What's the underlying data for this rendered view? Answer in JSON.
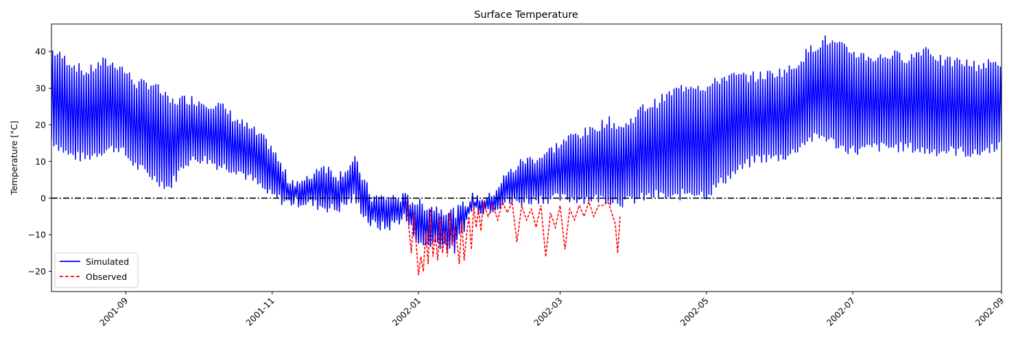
{
  "chart_data": {
    "type": "line",
    "title": "Surface Temperature",
    "ylabel": "Temperature [°C]",
    "xlabel": "",
    "x_axis_type": "date",
    "xlim": [
      "2001-08-01",
      "2002-09-01"
    ],
    "ylim": [
      -25.5,
      47.5
    ],
    "x_ticks": [
      "2001-09",
      "2001-11",
      "2002-01",
      "2002-03",
      "2002-05",
      "2002-07",
      "2002-09"
    ],
    "y_ticks": [
      -20,
      -10,
      0,
      10,
      20,
      30,
      40
    ],
    "grid": false,
    "legend_position": "lower-left",
    "reference_line": {
      "y": 0,
      "style": "dash-dot",
      "color": "#000000"
    },
    "series": [
      {
        "name": "Simulated",
        "color": "#0000ff",
        "style": "solid",
        "daily_max": [
          [
            "2001-08-01",
            40
          ],
          [
            "2001-08-08",
            37
          ],
          [
            "2001-08-15",
            34
          ],
          [
            "2001-08-22",
            37
          ],
          [
            "2001-08-29",
            36
          ],
          [
            "2001-09-05",
            31
          ],
          [
            "2001-09-12",
            31
          ],
          [
            "2001-09-19",
            26
          ],
          [
            "2001-09-26",
            27
          ],
          [
            "2001-10-03",
            26
          ],
          [
            "2001-10-10",
            25
          ],
          [
            "2001-10-17",
            21
          ],
          [
            "2001-10-24",
            18
          ],
          [
            "2001-10-31",
            14
          ],
          [
            "2001-11-07",
            5
          ],
          [
            "2001-11-14",
            4
          ],
          [
            "2001-11-21",
            9
          ],
          [
            "2001-11-28",
            6
          ],
          [
            "2001-12-05",
            10
          ],
          [
            "2001-12-12",
            0
          ],
          [
            "2001-12-19",
            0
          ],
          [
            "2001-12-26",
            0
          ],
          [
            "2002-01-02",
            -2
          ],
          [
            "2002-01-09",
            -3
          ],
          [
            "2002-01-16",
            -4
          ],
          [
            "2002-01-23",
            0
          ],
          [
            "2002-01-30",
            0
          ],
          [
            "2002-02-06",
            6
          ],
          [
            "2002-02-13",
            10
          ],
          [
            "2002-02-20",
            11
          ],
          [
            "2002-02-27",
            14
          ],
          [
            "2002-03-06",
            17
          ],
          [
            "2002-03-13",
            18
          ],
          [
            "2002-03-20",
            21
          ],
          [
            "2002-03-27",
            19
          ],
          [
            "2002-04-03",
            24
          ],
          [
            "2002-04-10",
            26
          ],
          [
            "2002-04-17",
            29
          ],
          [
            "2002-04-24",
            31
          ],
          [
            "2002-05-01",
            30
          ],
          [
            "2002-05-08",
            33
          ],
          [
            "2002-05-15",
            33
          ],
          [
            "2002-05-22",
            33
          ],
          [
            "2002-05-29",
            34
          ],
          [
            "2002-06-05",
            35
          ],
          [
            "2002-06-12",
            40
          ],
          [
            "2002-06-19",
            43
          ],
          [
            "2002-06-26",
            41
          ],
          [
            "2002-07-03",
            39
          ],
          [
            "2002-07-10",
            38
          ],
          [
            "2002-07-17",
            39
          ],
          [
            "2002-07-24",
            38
          ],
          [
            "2002-07-31",
            41
          ],
          [
            "2002-08-07",
            37
          ],
          [
            "2002-08-14",
            37
          ],
          [
            "2002-08-21",
            36
          ],
          [
            "2002-09-01",
            37
          ]
        ],
        "daily_min": [
          [
            "2001-08-01",
            16
          ],
          [
            "2001-08-08",
            12
          ],
          [
            "2001-08-15",
            11
          ],
          [
            "2001-08-22",
            13
          ],
          [
            "2001-08-29",
            14
          ],
          [
            "2001-09-05",
            9
          ],
          [
            "2001-09-12",
            6
          ],
          [
            "2001-09-19",
            3
          ],
          [
            "2001-09-26",
            10
          ],
          [
            "2001-10-03",
            11
          ],
          [
            "2001-10-10",
            9
          ],
          [
            "2001-10-17",
            8
          ],
          [
            "2001-10-24",
            5
          ],
          [
            "2001-10-31",
            1
          ],
          [
            "2001-11-07",
            -1
          ],
          [
            "2001-11-14",
            -1
          ],
          [
            "2001-11-21",
            -2
          ],
          [
            "2001-11-28",
            -3
          ],
          [
            "2001-12-05",
            0
          ],
          [
            "2001-12-12",
            -7
          ],
          [
            "2001-12-19",
            -8
          ],
          [
            "2001-12-26",
            -5
          ],
          [
            "2002-01-02",
            -13
          ],
          [
            "2002-01-09",
            -12
          ],
          [
            "2002-01-16",
            -14
          ],
          [
            "2002-01-23",
            -3
          ],
          [
            "2002-01-30",
            -3
          ],
          [
            "2002-02-06",
            -1
          ],
          [
            "2002-02-13",
            -1
          ],
          [
            "2002-02-20",
            0
          ],
          [
            "2002-02-27",
            0
          ],
          [
            "2002-03-06",
            0
          ],
          [
            "2002-03-13",
            0
          ],
          [
            "2002-03-20",
            0
          ],
          [
            "2002-03-27",
            -1
          ],
          [
            "2002-04-03",
            0
          ],
          [
            "2002-04-10",
            1
          ],
          [
            "2002-04-17",
            0
          ],
          [
            "2002-04-24",
            2
          ],
          [
            "2002-05-01",
            1
          ],
          [
            "2002-05-08",
            5
          ],
          [
            "2002-05-15",
            8
          ],
          [
            "2002-05-22",
            11
          ],
          [
            "2002-05-29",
            11
          ],
          [
            "2002-06-05",
            12
          ],
          [
            "2002-06-12",
            16
          ],
          [
            "2002-06-19",
            17
          ],
          [
            "2002-06-26",
            14
          ],
          [
            "2002-07-03",
            13
          ],
          [
            "2002-07-10",
            14
          ],
          [
            "2002-07-17",
            14
          ],
          [
            "2002-07-24",
            14
          ],
          [
            "2002-07-31",
            13
          ],
          [
            "2002-08-07",
            13
          ],
          [
            "2002-08-14",
            13
          ],
          [
            "2002-08-21",
            12
          ],
          [
            "2002-09-01",
            15
          ]
        ]
      },
      {
        "name": "Observed",
        "color": "#ff0000",
        "style": "dashed",
        "points": [
          [
            "2001-12-27",
            -1
          ],
          [
            "2001-12-28",
            -8
          ],
          [
            "2001-12-29",
            -15
          ],
          [
            "2001-12-30",
            -4
          ],
          [
            "2001-12-31",
            -12
          ],
          [
            "2002-01-01",
            -21
          ],
          [
            "2002-01-02",
            -16
          ],
          [
            "2002-01-03",
            -20
          ],
          [
            "2002-01-04",
            -9
          ],
          [
            "2002-01-05",
            -18
          ],
          [
            "2002-01-06",
            -3
          ],
          [
            "2002-01-07",
            -16
          ],
          [
            "2002-01-08",
            -10
          ],
          [
            "2002-01-09",
            -17
          ],
          [
            "2002-01-10",
            -5
          ],
          [
            "2002-01-11",
            -15
          ],
          [
            "2002-01-12",
            -9
          ],
          [
            "2002-01-13",
            -16
          ],
          [
            "2002-01-14",
            -4
          ],
          [
            "2002-01-15",
            -13
          ],
          [
            "2002-01-16",
            -8
          ],
          [
            "2002-01-17",
            -12
          ],
          [
            "2002-01-18",
            -18
          ],
          [
            "2002-01-19",
            -6
          ],
          [
            "2002-01-20",
            -17
          ],
          [
            "2002-01-21",
            -10
          ],
          [
            "2002-01-22",
            -5
          ],
          [
            "2002-01-23",
            -14
          ],
          [
            "2002-01-24",
            -2
          ],
          [
            "2002-01-25",
            -8
          ],
          [
            "2002-01-26",
            -3
          ],
          [
            "2002-01-27",
            -9
          ],
          [
            "2002-01-28",
            -1
          ],
          [
            "2002-01-30",
            -5
          ],
          [
            "2002-02-01",
            -2
          ],
          [
            "2002-02-03",
            -6
          ],
          [
            "2002-02-05",
            -1
          ],
          [
            "2002-02-07",
            -4
          ],
          [
            "2002-02-09",
            -1
          ],
          [
            "2002-02-11",
            -12
          ],
          [
            "2002-02-13",
            -2
          ],
          [
            "2002-02-15",
            -6
          ],
          [
            "2002-02-17",
            -3
          ],
          [
            "2002-02-19",
            -8
          ],
          [
            "2002-02-21",
            -2
          ],
          [
            "2002-02-23",
            -16
          ],
          [
            "2002-02-25",
            -4
          ],
          [
            "2002-02-27",
            -8
          ],
          [
            "2002-03-01",
            -2
          ],
          [
            "2002-03-03",
            -14
          ],
          [
            "2002-03-05",
            -3
          ],
          [
            "2002-03-07",
            -6
          ],
          [
            "2002-03-09",
            -2
          ],
          [
            "2002-03-11",
            -5
          ],
          [
            "2002-03-13",
            -1
          ],
          [
            "2002-03-15",
            -5
          ],
          [
            "2002-03-17",
            -2
          ],
          [
            "2002-03-19",
            -2
          ],
          [
            "2002-03-21",
            -1
          ],
          [
            "2002-03-24",
            -7
          ],
          [
            "2002-03-25",
            -15
          ],
          [
            "2002-03-26",
            -5
          ]
        ]
      }
    ]
  }
}
